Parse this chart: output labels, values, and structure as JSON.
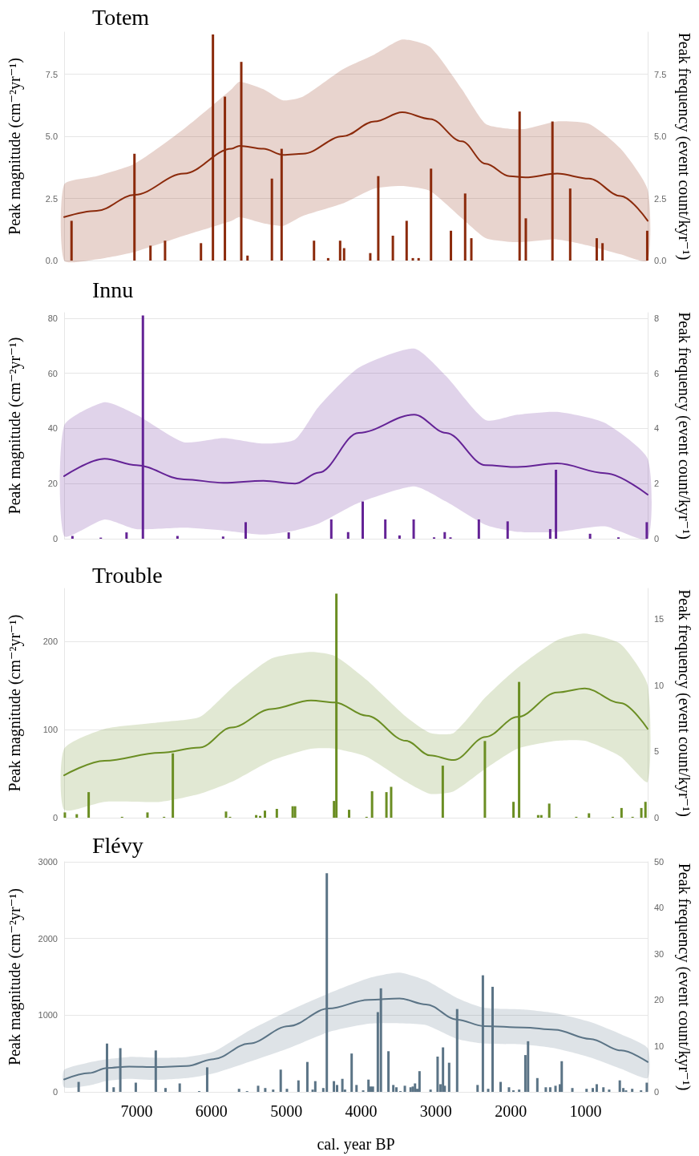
{
  "chart_data": [
    {
      "type": "bar",
      "title": "Totem",
      "ylabel": "Peak magnitude (cm⁻²yr⁻¹)",
      "y2label": "Peak frequency (event count/kyr⁻¹)",
      "xlim": [
        7970,
        170
      ],
      "ylim": [
        0,
        9.2
      ],
      "yticks": [
        {
          "value": 0,
          "label": "0.0"
        },
        2.5,
        {
          "value": 5,
          "label": "5.0"
        },
        7.5
      ],
      "y2lim": [
        0,
        9.2
      ],
      "y2ticks": [
        {
          "value": 0,
          "label": "0.0"
        },
        2.5,
        {
          "value": 5,
          "label": "5.0"
        },
        7.5
      ],
      "grid": "y",
      "tick_labels": "y",
      "series": [
        {
          "color": "#8b2a0b",
          "x": [
            7871,
            7030,
            6816,
            6621,
            6141,
            5981,
            5821,
            5602,
            5519,
            5193,
            5063,
            4630,
            4441,
            4281,
            4228,
            3878,
            3771,
            3576,
            3392,
            3309,
            3232,
            3066,
            2800,
            2610,
            2527,
            1882,
            1799,
            1443,
            1206,
            851,
            774,
            176
          ],
          "values": [
            1.6,
            4.3,
            0.6,
            0.8,
            0.7,
            9.1,
            6.6,
            8.0,
            0.2,
            3.3,
            4.5,
            0.8,
            0.1,
            0.8,
            0.5,
            0.3,
            3.4,
            1.0,
            1.6,
            0.1,
            0.1,
            3.7,
            1.2,
            2.7,
            0.9,
            6.0,
            1.7,
            5.6,
            2.9,
            0.9,
            0.7,
            1.2
          ]
        },
        {
          "type": "line",
          "axis": "y2",
          "color": "#8b2a0b",
          "x": [
            7970,
            7536,
            7027,
            6369,
            5732,
            5626,
            5307,
            5042,
            4777,
            4246,
            3822,
            3450,
            3079,
            2654,
            2336,
            2017,
            1805,
            1380,
            955,
            531,
            170
          ],
          "values": [
            1.75,
            2.0,
            2.65,
            3.5,
            4.5,
            4.62,
            4.5,
            4.25,
            4.3,
            5.0,
            5.6,
            5.97,
            5.7,
            4.8,
            3.9,
            3.4,
            3.35,
            3.5,
            3.3,
            2.6,
            1.6
          ],
          "upper": [
            3.06,
            3.4,
            3.9,
            5.3,
            6.9,
            7.2,
            6.9,
            6.45,
            6.6,
            7.7,
            8.3,
            8.9,
            8.6,
            6.9,
            5.5,
            5.3,
            5.3,
            5.6,
            5.5,
            4.5,
            2.85
          ],
          "lower": [
            0.0,
            0.05,
            0.35,
            1.0,
            1.6,
            1.75,
            1.5,
            1.4,
            1.8,
            2.3,
            2.9,
            3.0,
            2.8,
            1.7,
            0.9,
            0.75,
            0.75,
            0.85,
            0.6,
            0.25,
            0.0
          ]
        }
      ]
    },
    {
      "type": "bar",
      "title": "Innu",
      "ylabel": "Peak magnitude (cm⁻²yr⁻¹)",
      "y2label": "Peak frequency (event count/kyr⁻¹)",
      "xlim": [
        7970,
        170
      ],
      "ylim": [
        0,
        82
      ],
      "yticks": [
        0,
        20,
        40,
        60,
        80
      ],
      "y2lim": [
        0,
        8.2
      ],
      "y2ticks": [
        0,
        2,
        4,
        6,
        8
      ],
      "grid": "y",
      "tick_labels": "y",
      "series": [
        {
          "color": "#642396",
          "x": [
            7859,
            7480,
            7136,
            6917,
            6455,
            5845,
            5543,
            4968,
            4399,
            4174,
            3979,
            3677,
            3487,
            3298,
            3025,
            2883,
            2806,
            2427,
            2042,
            1473,
            1396,
            940,
            561,
            182
          ],
          "values": [
            1.0,
            0.4,
            2.3,
            81,
            1.0,
            0.8,
            6,
            2.3,
            7,
            2.4,
            13.5,
            7,
            1.2,
            7,
            0.5,
            2.4,
            0.5,
            7,
            6.3,
            3.5,
            25,
            1.8,
            0.5,
            6
          ]
        },
        {
          "type": "line",
          "axis": "y2",
          "color": "#642396",
          "x": [
            7970,
            7430,
            7005,
            6369,
            5838,
            5307,
            4883,
            4565,
            4034,
            3291,
            2866,
            2336,
            1911,
            1380,
            743,
            170
          ],
          "values": [
            2.27,
            2.9,
            2.67,
            2.15,
            2.03,
            2.1,
            2.0,
            2.4,
            3.84,
            4.5,
            3.84,
            2.67,
            2.6,
            2.73,
            2.38,
            1.6
          ],
          "upper": [
            4.1,
            4.95,
            4.5,
            3.5,
            3.65,
            3.45,
            3.6,
            4.8,
            6.2,
            6.9,
            5.9,
            4.3,
            4.5,
            4.6,
            4.2,
            2.9
          ],
          "lower": [
            0.1,
            0.7,
            0.35,
            0.4,
            0.3,
            0.15,
            0.3,
            0.55,
            1.3,
            1.9,
            1.35,
            0.5,
            0.25,
            0.25,
            0.45,
            0.0
          ]
        }
      ]
    },
    {
      "type": "bar",
      "title": "Trouble",
      "ylabel": "Peak magnitude (cm⁻²yr⁻¹)",
      "y2label": "Peak frequency (event count/kyr⁻¹)",
      "xlim": [
        7970,
        170
      ],
      "ylim": [
        0,
        260
      ],
      "yticks": [
        0,
        100,
        200
      ],
      "y2lim": [
        0,
        17.3
      ],
      "y2ticks": [
        0,
        5,
        10,
        15
      ],
      "grid": "y",
      "tick_labels": "y",
      "series": [
        {
          "color": "#6b8e23",
          "x": [
            7960,
            7801,
            7642,
            7196,
            6856,
            6634,
            6517,
            5806,
            5753,
            5403,
            5350,
            5286,
            5127,
            4915,
            4883,
            4363,
            4331,
            4161,
            3928,
            3854,
            3662,
            3599,
            2909,
            2346,
            1964,
            1889,
            1634,
            1592,
            1486,
            1125,
            955,
            637,
            520,
            372,
            255,
            200
          ],
          "values": [
            6,
            4,
            29,
            1,
            6,
            1,
            73,
            7,
            1,
            3,
            2,
            8,
            10,
            13,
            13,
            19,
            254,
            9,
            1,
            30,
            29,
            35,
            59,
            87,
            18,
            154,
            3,
            3,
            16,
            1,
            5,
            1,
            11,
            1,
            11,
            18
          ]
        },
        {
          "type": "line",
          "axis": "y2",
          "color": "#6b8e23",
          "x": [
            7970,
            7430,
            6687,
            6156,
            5732,
            5201,
            4671,
            4352,
            3928,
            3397,
            3079,
            2761,
            2336,
            1911,
            1380,
            1009,
            531,
            170
          ],
          "values": [
            3.2,
            4.3,
            4.9,
            5.3,
            6.8,
            8.2,
            8.85,
            8.7,
            7.7,
            5.8,
            4.7,
            4.35,
            6.1,
            7.6,
            9.45,
            9.75,
            8.65,
            6.7
          ],
          "upper": [
            5.2,
            6.7,
            7.2,
            7.6,
            9.75,
            12.0,
            12.5,
            12.2,
            10.4,
            7.6,
            6.4,
            6.4,
            9.1,
            11.3,
            13.4,
            13.9,
            13.1,
            10.0
          ],
          "lower": [
            0.6,
            1.2,
            1.2,
            1.8,
            2.7,
            4.3,
            5.2,
            5.2,
            4.6,
            2.7,
            1.8,
            2.0,
            3.7,
            5.2,
            5.8,
            5.8,
            4.6,
            2.7
          ]
        }
      ]
    },
    {
      "type": "bar",
      "title": "Flévy",
      "xlabel": "cal. year BP",
      "ylabel": "Peak magnitude (cm⁻²yr⁻¹)",
      "y2label": "Peak frequency (event count/kyr⁻¹)",
      "xlim": [
        7970,
        170
      ],
      "xticks": [
        7000,
        6000,
        5000,
        4000,
        3000,
        2000,
        1000
      ],
      "ylim": [
        0,
        3000
      ],
      "yticks": [
        0,
        1000,
        2000,
        3000
      ],
      "y2lim": [
        0,
        50
      ],
      "y2ticks": [
        0,
        10,
        20,
        30,
        40,
        50
      ],
      "grid": "y",
      "series": [
        {
          "color": "#5b7486",
          "x": [
            7776,
            7397,
            7308,
            7219,
            7012,
            6745,
            6615,
            6425,
            6165,
            6058,
            5632,
            5525,
            5377,
            5282,
            5176,
            5075,
            4992,
            4838,
            4719,
            4648,
            4613,
            4506,
            4459,
            4364,
            4322,
            4251,
            4216,
            4127,
            4062,
            3973,
            3902,
            3872,
            3843,
            3777,
            3736,
            3635,
            3570,
            3529,
            3475,
            3416,
            3339,
            3309,
            3280,
            3250,
            3220,
            3072,
            2978,
            2940,
            2906,
            2883,
            2824,
            2717,
            2444,
            2373,
            2302,
            2243,
            2136,
            2024,
            1965,
            1888,
            1805,
            1769,
            1645,
            1532,
            1473,
            1402,
            1343,
            1319,
            1177,
            987,
            904,
            851,
            762,
            685,
            543,
            496,
            460,
            377,
            259,
            182
          ],
          "values": [
            130,
            630,
            60,
            570,
            120,
            540,
            50,
            110,
            10,
            320,
            40,
            10,
            80,
            50,
            30,
            290,
            40,
            150,
            390,
            30,
            140,
            50,
            2850,
            140,
            90,
            170,
            30,
            500,
            90,
            20,
            160,
            70,
            70,
            1040,
            1350,
            530,
            90,
            60,
            10,
            80,
            60,
            70,
            110,
            40,
            270,
            30,
            460,
            100,
            580,
            80,
            380,
            1080,
            90,
            1520,
            40,
            1370,
            130,
            60,
            20,
            30,
            480,
            660,
            180,
            60,
            60,
            80,
            100,
            400,
            50,
            40,
            50,
            100,
            60,
            30,
            150,
            50,
            20,
            40,
            20,
            120
          ]
        },
        {
          "type": "line",
          "axis": "y2",
          "color": "#5b7486",
          "x": [
            7970,
            7634,
            7397,
            7101,
            6745,
            6331,
            5975,
            5501,
            4968,
            4435,
            3902,
            3487,
            3132,
            2717,
            2362,
            1828,
            1414,
            940,
            525,
            170
          ],
          "values": [
            2.7,
            4.1,
            5.2,
            5.5,
            5.4,
            5.6,
            7.1,
            10.5,
            14.3,
            18.1,
            20.0,
            20.3,
            19.0,
            15.7,
            14.3,
            14.0,
            13.5,
            11.5,
            9.0,
            6.5
          ],
          "upper": [
            4.75,
            6.4,
            7.1,
            7.6,
            7.4,
            7.6,
            8.7,
            13.3,
            17.6,
            21.4,
            24.7,
            25.9,
            24.2,
            20.4,
            18.3,
            17.9,
            17.1,
            15.2,
            12.5,
            9.5
          ],
          "lower": [
            1.0,
            1.4,
            2.4,
            2.85,
            2.6,
            3.0,
            4.0,
            6.5,
            9.5,
            13.0,
            14.8,
            14.9,
            14.5,
            11.5,
            10.5,
            10.3,
            9.5,
            7.5,
            5.0,
            3.0
          ]
        }
      ]
    }
  ]
}
